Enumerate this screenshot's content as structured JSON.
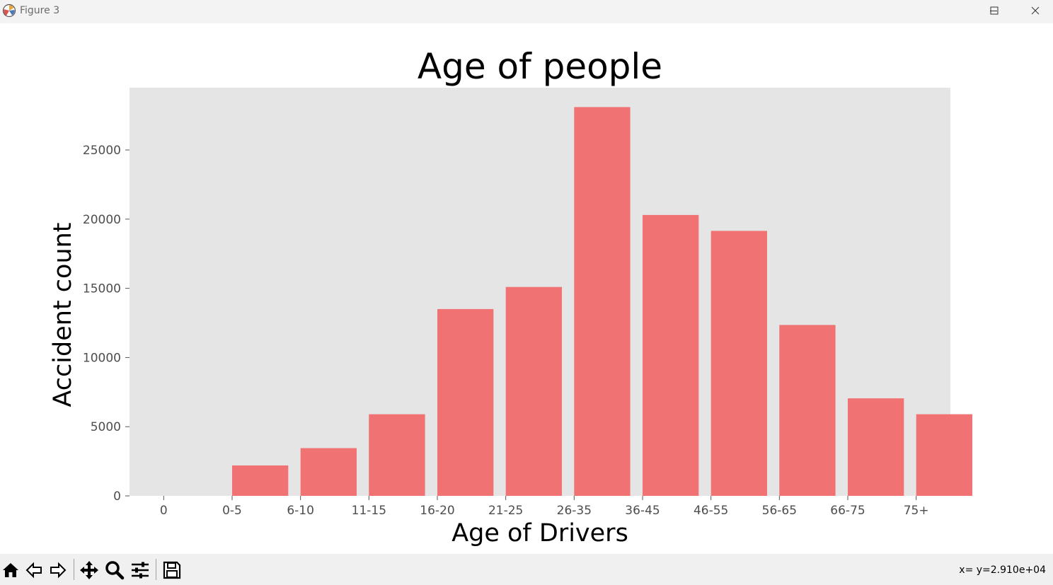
{
  "window": {
    "title": "Figure 3"
  },
  "icons": {
    "app": "matplotlib-icon",
    "minimize": "minimize-icon",
    "maximize": "maximize-icon",
    "close": "close-icon"
  },
  "toolbar": {
    "tools": [
      "home-icon",
      "back-arrow-icon",
      "forward-arrow-icon",
      "pan-move-icon",
      "zoom-magnifier-icon",
      "configure-subplots-icon",
      "save-disk-icon"
    ],
    "coordinates": "x= y=2.910e+04"
  },
  "colors": {
    "bar": "#f07272",
    "plot_background": "#e5e5e5"
  },
  "chart_data": {
    "type": "bar",
    "title": "Age of people",
    "xlabel": "Age of Drivers",
    "ylabel": "Accident count",
    "x_tick_labels": [
      "0",
      "0-5",
      "6-10",
      "11-15",
      "16-20",
      "21-25",
      "26-35",
      "36-45",
      "46-55",
      "56-65",
      "66-75",
      "75+"
    ],
    "categories": [
      "0-5",
      "6-10",
      "11-15",
      "16-20",
      "21-25",
      "26-35",
      "36-45",
      "46-55",
      "56-65",
      "66-75",
      "75+"
    ],
    "values": [
      2200,
      3450,
      5900,
      13500,
      15100,
      28100,
      20300,
      19150,
      12350,
      7050,
      5900
    ],
    "yticks": [
      0,
      5000,
      10000,
      15000,
      20000,
      25000
    ],
    "ylim": [
      0,
      29500
    ],
    "grid": false,
    "legend": "none"
  }
}
